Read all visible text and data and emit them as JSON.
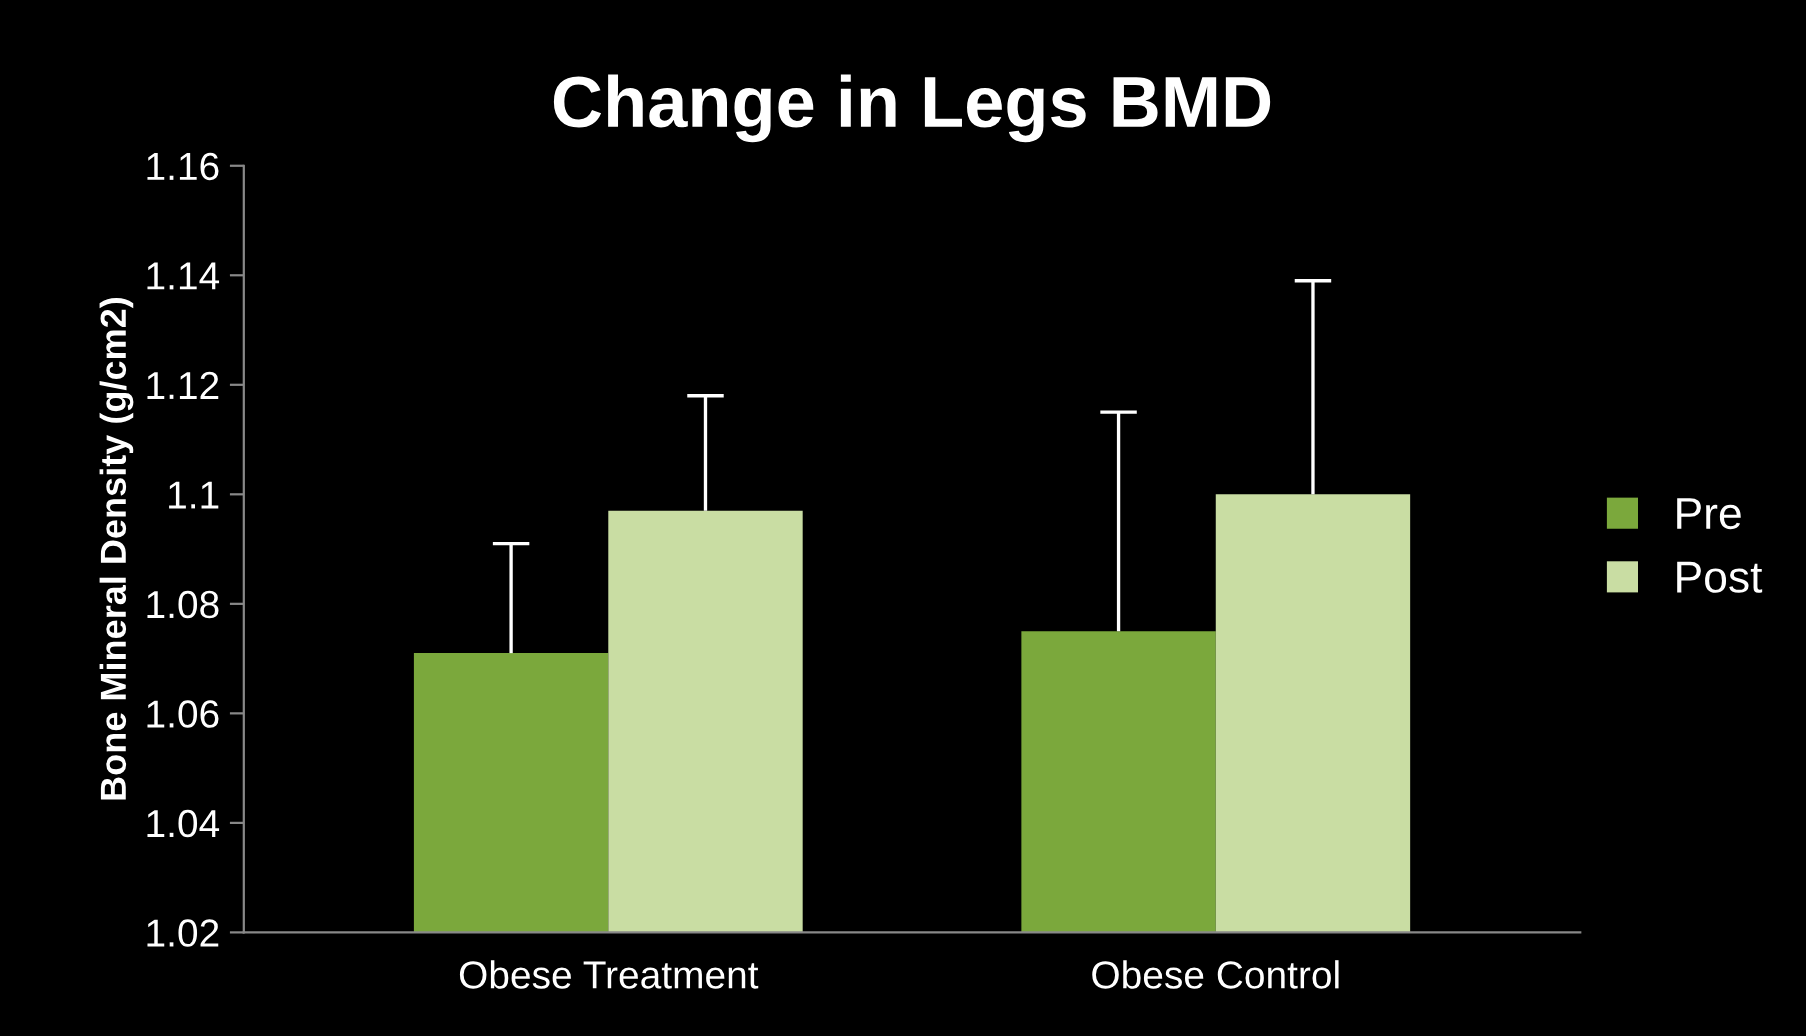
{
  "chart_data": {
    "type": "bar",
    "title": "Change in Legs BMD",
    "ylabel": "Bone Mineral Density (g/cm2)",
    "categories": [
      "Obese Treatment",
      "Obese Control"
    ],
    "series": [
      {
        "name": "Pre",
        "color": "#7ba83c",
        "values": [
          1.071,
          1.075
        ],
        "errors": [
          [
            1.071,
            1.091
          ],
          [
            1.075,
            1.115
          ]
        ]
      },
      {
        "name": "Post",
        "color": "#c9dda3",
        "values": [
          1.097,
          1.1
        ],
        "errors": [
          [
            1.097,
            1.118
          ],
          [
            1.1,
            1.139
          ]
        ]
      }
    ],
    "ylim": [
      1.02,
      1.16
    ],
    "yticks": [
      1.02,
      1.04,
      1.06,
      1.08,
      1.1,
      1.12,
      1.14,
      1.16
    ],
    "grid": false,
    "legend": "right"
  }
}
